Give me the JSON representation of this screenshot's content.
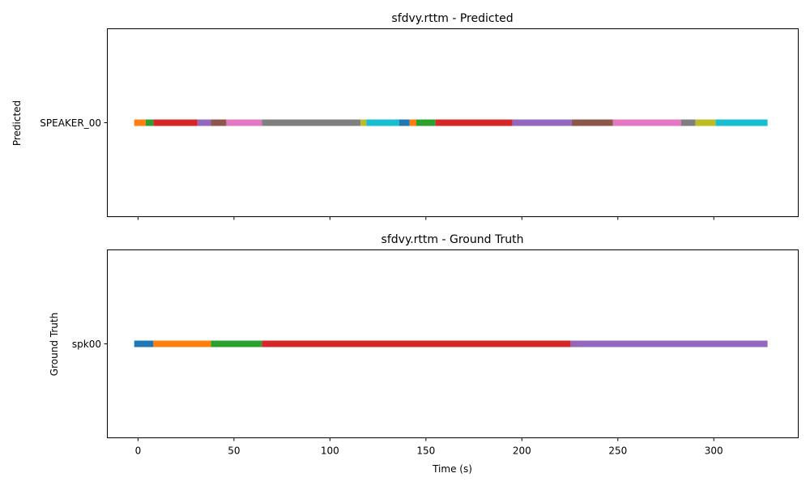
{
  "xlabel": "Time (s)",
  "x_ticks": [
    0,
    50,
    100,
    150,
    200,
    250,
    300
  ],
  "xlim": [
    -16,
    344
  ],
  "palette": [
    "#1f77b4",
    "#ff7f0e",
    "#2ca02c",
    "#d62728",
    "#9467bd",
    "#8c564b",
    "#e377c2",
    "#7f7f7f",
    "#bcbd22",
    "#17becf"
  ],
  "chart_data": [
    {
      "type": "timeline",
      "title": "sfdvy.rttm - Predicted",
      "ylabel": "Predicted",
      "speaker": "SPEAKER_00",
      "segments": [
        {
          "start": -2,
          "end": 4,
          "color": "#ff7f0e"
        },
        {
          "start": 4,
          "end": 8,
          "color": "#2ca02c"
        },
        {
          "start": 8,
          "end": 31,
          "color": "#d62728"
        },
        {
          "start": 31,
          "end": 38,
          "color": "#9467bd"
        },
        {
          "start": 38,
          "end": 46,
          "color": "#8c564b"
        },
        {
          "start": 46,
          "end": 64.5,
          "color": "#e377c2"
        },
        {
          "start": 64.5,
          "end": 116,
          "color": "#7f7f7f"
        },
        {
          "start": 116,
          "end": 119,
          "color": "#bcbd22"
        },
        {
          "start": 119,
          "end": 136,
          "color": "#17becf"
        },
        {
          "start": 136,
          "end": 141.5,
          "color": "#1f77b4"
        },
        {
          "start": 141.5,
          "end": 145,
          "color": "#ff7f0e"
        },
        {
          "start": 145,
          "end": 155,
          "color": "#2ca02c"
        },
        {
          "start": 155,
          "end": 195,
          "color": "#d62728"
        },
        {
          "start": 195,
          "end": 226,
          "color": "#9467bd"
        },
        {
          "start": 226,
          "end": 247.5,
          "color": "#8c564b"
        },
        {
          "start": 247.5,
          "end": 283,
          "color": "#e377c2"
        },
        {
          "start": 283,
          "end": 290.5,
          "color": "#7f7f7f"
        },
        {
          "start": 290.5,
          "end": 301,
          "color": "#bcbd22"
        },
        {
          "start": 301,
          "end": 328,
          "color": "#17becf"
        }
      ]
    },
    {
      "type": "timeline",
      "title": "sfdvy.rttm - Ground Truth",
      "ylabel": "Ground Truth",
      "speaker": "spk00",
      "segments": [
        {
          "start": -2,
          "end": 8,
          "color": "#1f77b4"
        },
        {
          "start": 8,
          "end": 38,
          "color": "#ff7f0e"
        },
        {
          "start": 38,
          "end": 64.5,
          "color": "#2ca02c"
        },
        {
          "start": 64.5,
          "end": 225.5,
          "color": "#d62728"
        },
        {
          "start": 225.5,
          "end": 328,
          "color": "#9467bd"
        }
      ]
    }
  ]
}
